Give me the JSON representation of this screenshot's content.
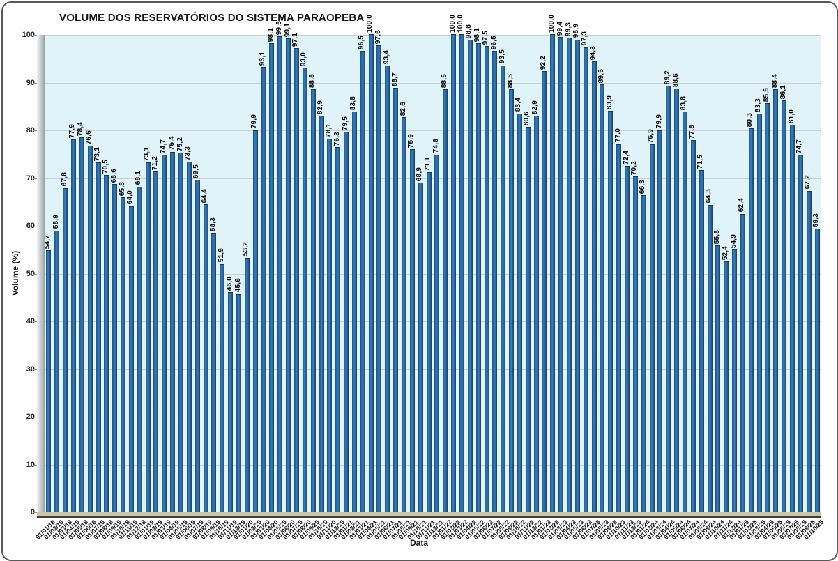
{
  "chart_data": {
    "type": "bar",
    "title": "VOLUME DOS RESERVATÓRIOS DO SISTEMA PARAOPEBA",
    "xlabel": "Data",
    "ylabel": "Volume (%)",
    "ylim": [
      0,
      100
    ],
    "yticks": [
      0,
      10,
      20,
      30,
      40,
      50,
      60,
      70,
      80,
      90,
      100
    ],
    "grid": true,
    "legend": false,
    "decimal_separator": ",",
    "bar_color": "#2e6fa8",
    "plot_background": "#dff3f8",
    "floor_color": "#cdc7a0",
    "categories": [
      "01/01/18",
      "01/02/18",
      "01/03/18",
      "01/04/18",
      "01/05/18",
      "01/06/18",
      "01/07/18",
      "01/08/18",
      "01/09/18",
      "01/10/18",
      "01/11/18",
      "01/12/18",
      "01/01/19",
      "01/02/19",
      "01/03/19",
      "01/04/19",
      "01/05/19",
      "01/06/19",
      "01/07/19",
      "01/08/19",
      "01/09/19",
      "01/10/19",
      "01/11/19",
      "01/12/19",
      "01/01/20",
      "01/02/20",
      "01/03/20",
      "01/04/20",
      "01/05/20",
      "01/06/20",
      "01/07/20",
      "01/08/20",
      "01/09/20",
      "01/10/20",
      "01/11/20",
      "01/12/20",
      "01/01/21",
      "01/02/21",
      "01/03/21",
      "01/04/21",
      "01/05/21",
      "01/06/21",
      "01/07/21",
      "01/08/21",
      "01/09/21",
      "01/10/21",
      "01/11/21",
      "01/12/21",
      "01/01/22",
      "01/02/22",
      "01/03/22",
      "01/04/22",
      "01/05/22",
      "01/06/22",
      "01/07/22",
      "01/08/22",
      "01/09/22",
      "01/10/22",
      "01/11/22",
      "01/12/22",
      "01/01/23",
      "01/02/23",
      "01/03/23",
      "01/04/23",
      "01/05/23",
      "01/06/23",
      "01/07/23",
      "01/08/23",
      "01/09/23",
      "01/10/23",
      "01/11/23",
      "01/12/23",
      "01/01/24",
      "01/02/24",
      "01/03/24",
      "01/04/24",
      "01/05/24",
      "01/06/24",
      "01/07/24",
      "01/08/24",
      "01/09/24",
      "01/10/24",
      "01/11/24",
      "01/12/24",
      "01/01/25",
      "01/02/25",
      "01/03/25",
      "01/04/25",
      "01/05/25",
      "01/06/25",
      "01/07/25",
      "01/08/25",
      "01/09/25",
      "01/10/25"
    ],
    "values": [
      54.7,
      58.9,
      67.8,
      77.9,
      78.4,
      76.6,
      73.1,
      70.5,
      68.6,
      65.8,
      64.0,
      68.1,
      73.1,
      71.2,
      74.7,
      75.4,
      75.2,
      73.3,
      69.5,
      64.4,
      58.3,
      51.9,
      46.0,
      45.6,
      53.2,
      79.9,
      93.1,
      98.1,
      99.5,
      99.1,
      97.1,
      93.0,
      88.5,
      82.9,
      78.1,
      76.3,
      79.5,
      83.8,
      96.5,
      100.0,
      97.6,
      93.4,
      88.7,
      82.6,
      75.9,
      68.9,
      71.1,
      74.8,
      88.5,
      100.0,
      100.0,
      98.8,
      98.1,
      97.5,
      96.5,
      93.5,
      88.5,
      83.4,
      80.6,
      82.9,
      92.2,
      100.0,
      99.4,
      99.3,
      98.9,
      97.3,
      94.3,
      89.5,
      83.9,
      77.0,
      72.4,
      70.2,
      66.3,
      76.9,
      79.9,
      89.2,
      88.6,
      83.8,
      77.8,
      71.5,
      64.3,
      55.8,
      52.4,
      54.9,
      62.4,
      80.3,
      83.3,
      85.5,
      88.4,
      86.1,
      81.0,
      74.7,
      67.2,
      59.3
    ]
  }
}
